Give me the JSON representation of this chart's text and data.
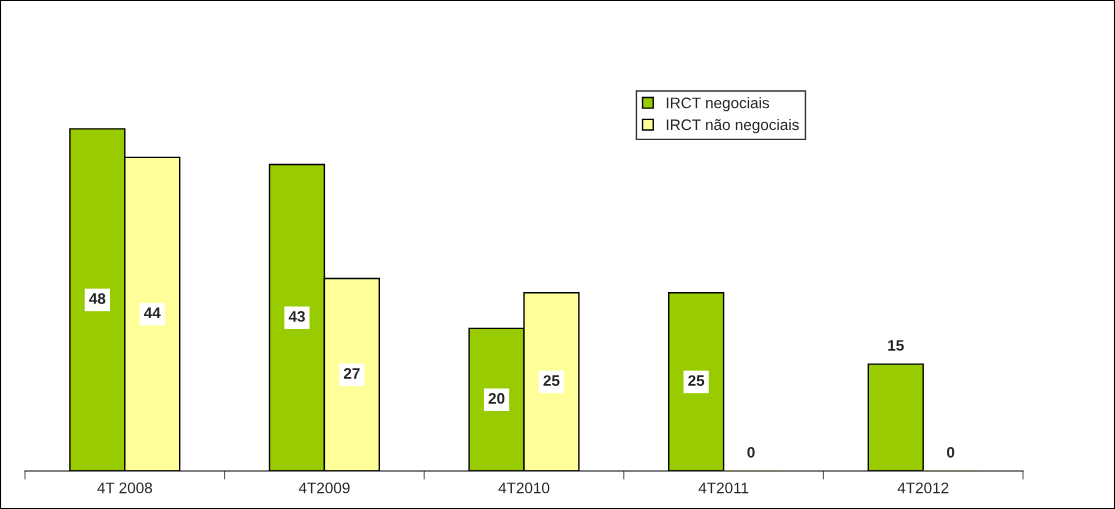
{
  "chart_data": {
    "type": "bar",
    "categories": [
      "4T 2008",
      "4T2009",
      "4T2010",
      "4T2011",
      "4T2012"
    ],
    "series": [
      {
        "name": "IRCT negociais",
        "color": "#99cc00",
        "values": [
          48,
          43,
          20,
          25,
          15
        ]
      },
      {
        "name": "IRCT não negociais",
        "color": "#ffff99",
        "values": [
          44,
          27,
          25,
          0,
          0
        ]
      }
    ],
    "data_labels": true,
    "legend": "top right",
    "grid": false
  }
}
